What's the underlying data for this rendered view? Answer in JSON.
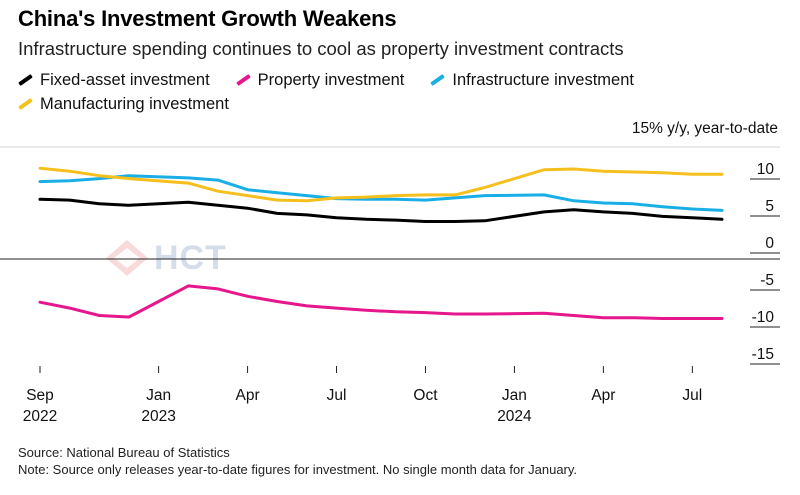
{
  "title": "China's Investment Growth Weakens",
  "subtitle": "Infrastructure spending continues to cool as property investment contracts",
  "unit_label": "15% y/y, year-to-date",
  "watermark": "HCT",
  "footer": {
    "source": "Source: National Bureau of Statistics",
    "note": "Note: Source only releases year-to-date figures for investment. No single month data for January."
  },
  "legend": [
    {
      "name": "Fixed-asset investment",
      "color": "#000000"
    },
    {
      "name": "Property investment",
      "color": "#e6168c"
    },
    {
      "name": "Infrastructure investment",
      "color": "#1aaee6"
    },
    {
      "name": "Manufacturing investment",
      "color": "#f5c01e"
    }
  ],
  "chart_data": {
    "type": "line",
    "title": "China's Investment Growth Weakens",
    "ylabel": "15% y/y, year-to-date",
    "ylim": [
      -17,
      13
    ],
    "yticks": [
      10,
      5,
      0,
      -5,
      -10,
      -15
    ],
    "x_ticks": [
      {
        "index": 0,
        "label": "Sep",
        "year": "2022"
      },
      {
        "index": 4,
        "label": "Jan",
        "year": "2023"
      },
      {
        "index": 7,
        "label": "Apr",
        "year": ""
      },
      {
        "index": 10,
        "label": "Jul",
        "year": ""
      },
      {
        "index": 13,
        "label": "Oct",
        "year": ""
      },
      {
        "index": 16,
        "label": "Jan",
        "year": "2024"
      },
      {
        "index": 19,
        "label": "Apr",
        "year": ""
      },
      {
        "index": 22,
        "label": "Jul",
        "year": ""
      }
    ],
    "series": [
      {
        "name": "Fixed-asset investment",
        "color": "#000000",
        "points": [
          [
            0,
            5.9
          ],
          [
            1,
            5.8
          ],
          [
            2,
            5.3
          ],
          [
            3,
            5.1
          ],
          [
            5,
            5.5
          ],
          [
            6,
            5.1
          ],
          [
            7,
            4.7
          ],
          [
            8,
            4.0
          ],
          [
            9,
            3.8
          ],
          [
            10,
            3.4
          ],
          [
            11,
            3.2
          ],
          [
            12,
            3.1
          ],
          [
            13,
            2.9
          ],
          [
            14,
            2.9
          ],
          [
            15,
            3.0
          ],
          [
            17,
            4.2
          ],
          [
            18,
            4.5
          ],
          [
            19,
            4.2
          ],
          [
            20,
            4.0
          ],
          [
            21,
            3.6
          ],
          [
            22,
            3.4
          ],
          [
            23,
            3.2
          ]
        ]
      },
      {
        "name": "Property investment",
        "color": "#e6168c",
        "points": [
          [
            0,
            -8.0
          ],
          [
            1,
            -8.8
          ],
          [
            2,
            -9.8
          ],
          [
            3,
            -10.0
          ],
          [
            5,
            -5.8
          ],
          [
            6,
            -6.2
          ],
          [
            7,
            -7.2
          ],
          [
            8,
            -7.9
          ],
          [
            9,
            -8.5
          ],
          [
            10,
            -8.8
          ],
          [
            11,
            -9.1
          ],
          [
            12,
            -9.3
          ],
          [
            13,
            -9.4
          ],
          [
            14,
            -9.6
          ],
          [
            15,
            -9.6
          ],
          [
            17,
            -9.5
          ],
          [
            18,
            -9.8
          ],
          [
            19,
            -10.1
          ],
          [
            20,
            -10.1
          ],
          [
            21,
            -10.2
          ],
          [
            22,
            -10.2
          ],
          [
            23,
            -10.2
          ]
        ]
      },
      {
        "name": "Infrastructure investment",
        "color": "#1aaee6",
        "points": [
          [
            0,
            8.3
          ],
          [
            1,
            8.4
          ],
          [
            2,
            8.7
          ],
          [
            3,
            9.1
          ],
          [
            5,
            8.8
          ],
          [
            6,
            8.5
          ],
          [
            7,
            7.2
          ],
          [
            8,
            6.8
          ],
          [
            9,
            6.4
          ],
          [
            10,
            6.0
          ],
          [
            11,
            5.9
          ],
          [
            12,
            5.9
          ],
          [
            13,
            5.8
          ],
          [
            14,
            6.1
          ],
          [
            15,
            6.4
          ],
          [
            17,
            6.5
          ],
          [
            18,
            5.7
          ],
          [
            19,
            5.4
          ],
          [
            20,
            5.3
          ],
          [
            21,
            4.9
          ],
          [
            22,
            4.6
          ],
          [
            23,
            4.4
          ]
        ]
      },
      {
        "name": "Manufacturing investment",
        "color": "#f5c01e",
        "points": [
          [
            0,
            10.1
          ],
          [
            1,
            9.7
          ],
          [
            2,
            9.1
          ],
          [
            3,
            8.7
          ],
          [
            5,
            8.1
          ],
          [
            6,
            7.0
          ],
          [
            7,
            6.4
          ],
          [
            8,
            5.8
          ],
          [
            9,
            5.7
          ],
          [
            10,
            6.1
          ],
          [
            11,
            6.2
          ],
          [
            12,
            6.4
          ],
          [
            13,
            6.5
          ],
          [
            14,
            6.5
          ],
          [
            15,
            7.5
          ],
          [
            17,
            9.9
          ],
          [
            18,
            10.0
          ],
          [
            19,
            9.7
          ],
          [
            20,
            9.6
          ],
          [
            21,
            9.5
          ],
          [
            22,
            9.3
          ],
          [
            23,
            9.3
          ]
        ]
      }
    ]
  }
}
